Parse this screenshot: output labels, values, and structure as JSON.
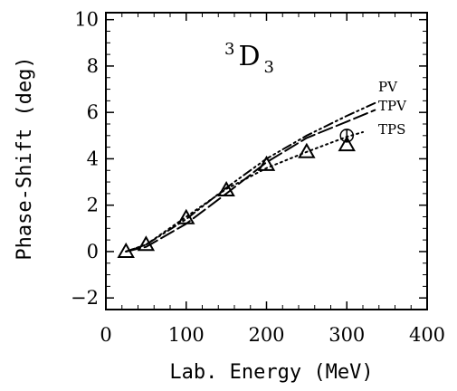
{
  "chart_data": {
    "type": "line",
    "title": "",
    "annotation": {
      "superscript": "3",
      "letter": "D",
      "subscript": "3"
    },
    "xlabel": "Lab. Energy (MeV)",
    "ylabel": "Phase-Shift (deg)",
    "xlim": [
      0,
      400
    ],
    "ylim": [
      -2.5,
      10.3
    ],
    "xticks": [
      0,
      100,
      200,
      300,
      400
    ],
    "yticks": [
      -2,
      0,
      2,
      4,
      6,
      8,
      10
    ],
    "grid": false,
    "legend": "inline labels at right end of curves",
    "series": [
      {
        "name": "PV",
        "style": "dash-dot-dot",
        "x": [
          25,
          50,
          100,
          150,
          200,
          250,
          300,
          335
        ],
        "y": [
          0.0,
          0.3,
          1.4,
          2.75,
          4.0,
          5.0,
          5.85,
          6.4
        ]
      },
      {
        "name": "TPV",
        "style": "long-dash",
        "x": [
          25,
          50,
          100,
          150,
          200,
          250,
          300,
          335
        ],
        "y": [
          0.0,
          0.2,
          1.2,
          2.5,
          3.85,
          4.9,
          5.6,
          6.1
        ]
      },
      {
        "name": "TPS",
        "style": "dotted",
        "x": [
          25,
          50,
          100,
          150,
          200,
          250,
          300,
          320
        ],
        "y": [
          0.0,
          0.3,
          1.5,
          2.7,
          3.6,
          4.3,
          4.95,
          5.15
        ]
      }
    ],
    "markers": {
      "triangles": {
        "x": [
          25,
          50,
          100,
          150,
          200,
          250,
          300
        ],
        "y": [
          0.0,
          0.3,
          1.45,
          2.65,
          3.75,
          4.3,
          4.6
        ]
      },
      "circle": {
        "x": 300,
        "y": 5.0,
        "err": 0.25
      }
    }
  }
}
